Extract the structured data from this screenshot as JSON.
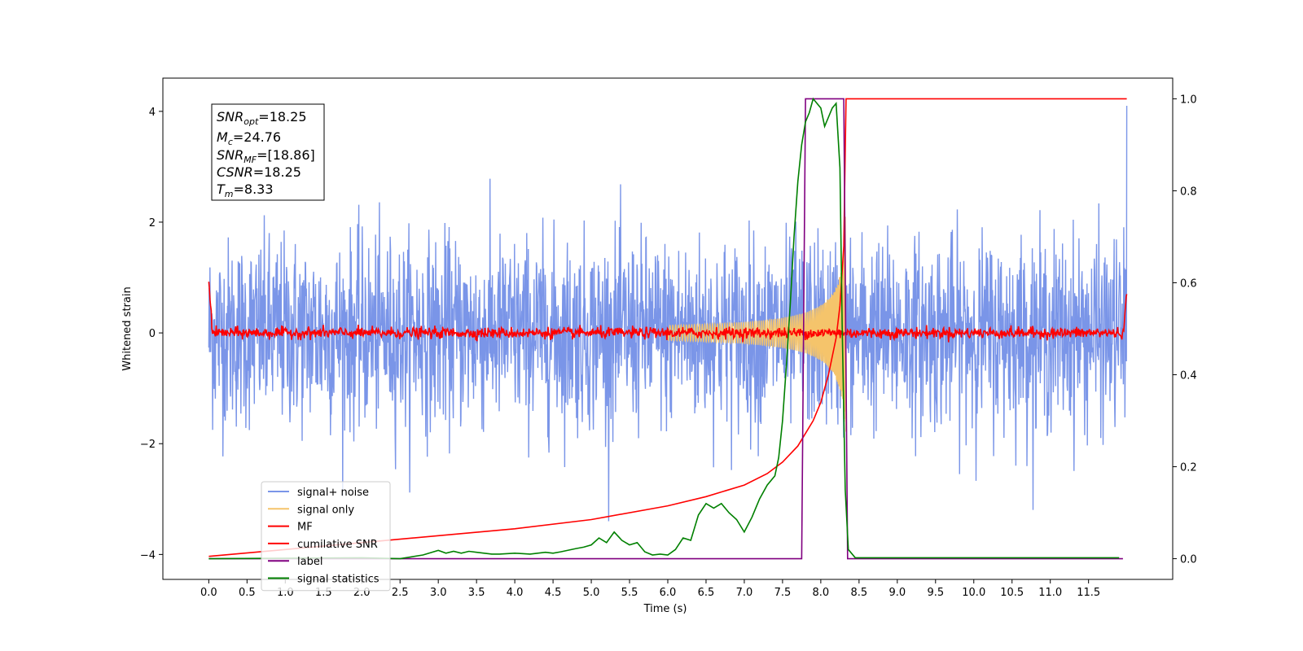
{
  "chart_data": {
    "type": "line",
    "xlabel": "Time (s)",
    "ylabel_left": "Whitened strain",
    "xlim": [
      -0.6,
      12.6
    ],
    "ylim_left": [
      -4.45,
      4.6
    ],
    "ylim_right": [
      -0.045,
      1.045
    ],
    "x_ticks": [
      "0.0",
      "0.5",
      "1.0",
      "1.5",
      "2.0",
      "2.5",
      "3.0",
      "3.5",
      "4.0",
      "4.5",
      "5.0",
      "5.5",
      "6.0",
      "6.5",
      "7.0",
      "7.5",
      "8.0",
      "8.5",
      "9.0",
      "9.5",
      "10.0",
      "10.5",
      "11.0",
      "11.5"
    ],
    "y_left_ticks": [
      "−4",
      "−2",
      "0",
      "2",
      "4"
    ],
    "y_right_ticks": [
      "0.0",
      "0.2",
      "0.4",
      "0.6",
      "0.8",
      "1.0"
    ],
    "annotation": {
      "snr_opt": {
        "base": "SNR",
        "sub": "opt",
        "value": "=18.25"
      },
      "mc": {
        "base": "M",
        "sub": "c",
        "value": "=24.76"
      },
      "snr_mf": {
        "base": "SNR",
        "sub": "MF",
        "value": "=[18.86]"
      },
      "csnr": {
        "base": "CSNR",
        "sub": "",
        "value": "=18.25"
      },
      "tm": {
        "base": "T",
        "sub": "m",
        "value": "=8.33"
      }
    },
    "legend_position": "lower-left",
    "series": [
      {
        "name": "signal+ noise",
        "color": "#7a95e8",
        "axis": "left",
        "description_values": "noise std ~0.85, range about -3.4 to 4.1, 0 to 12 s"
      },
      {
        "name": "signal only",
        "color": "#f5c46b",
        "axis": "left",
        "chirp_peak_time": 8.33,
        "peak_amplitude": 2.0
      },
      {
        "name": "MF",
        "color": "#ff0000",
        "axis": "left",
        "start_value": 1.0,
        "end_value": 0.92,
        "noise_std": 0.05
      },
      {
        "name": "cumilative SNR",
        "color": "#ff0000",
        "axis": "right",
        "x": [
          0.0,
          1.0,
          2.0,
          3.0,
          4.0,
          5.0,
          6.0,
          6.5,
          7.0,
          7.3,
          7.5,
          7.7,
          7.9,
          8.0,
          8.1,
          8.2,
          8.25,
          8.3,
          8.33,
          12.0
        ],
        "y": [
          0.005,
          0.02,
          0.035,
          0.05,
          0.065,
          0.085,
          0.115,
          0.135,
          0.16,
          0.185,
          0.21,
          0.245,
          0.3,
          0.34,
          0.4,
          0.48,
          0.55,
          0.68,
          1.0,
          1.0
        ]
      },
      {
        "name": "label",
        "color": "#800080",
        "axis": "right",
        "x": [
          0.0,
          7.75,
          7.8,
          8.3,
          8.35,
          11.95
        ],
        "y": [
          0.0,
          0.0,
          1.0,
          1.0,
          0.0,
          0.0
        ]
      },
      {
        "name": "signal statistics",
        "color": "#008000",
        "axis": "right",
        "x": [
          0.0,
          2.0,
          2.5,
          2.8,
          3.0,
          3.1,
          3.2,
          3.3,
          3.4,
          3.5,
          3.6,
          3.7,
          3.8,
          4.0,
          4.2,
          4.4,
          4.5,
          4.6,
          4.8,
          4.9,
          5.0,
          5.1,
          5.2,
          5.3,
          5.4,
          5.5,
          5.6,
          5.7,
          5.8,
          5.9,
          6.0,
          6.1,
          6.2,
          6.3,
          6.4,
          6.5,
          6.6,
          6.7,
          6.8,
          6.9,
          7.0,
          7.1,
          7.2,
          7.3,
          7.4,
          7.45,
          7.5,
          7.55,
          7.6,
          7.65,
          7.7,
          7.75,
          7.8,
          7.85,
          7.9,
          8.0,
          8.05,
          8.1,
          8.15,
          8.2,
          8.25,
          8.28,
          8.32,
          8.36,
          8.45,
          9.0,
          10.0,
          11.0,
          11.9
        ],
        "y": [
          0.0,
          0.002,
          0.0,
          0.008,
          0.018,
          0.012,
          0.016,
          0.012,
          0.016,
          0.014,
          0.012,
          0.01,
          0.01,
          0.012,
          0.01,
          0.014,
          0.012,
          0.015,
          0.022,
          0.025,
          0.03,
          0.045,
          0.035,
          0.058,
          0.04,
          0.03,
          0.035,
          0.015,
          0.008,
          0.01,
          0.008,
          0.02,
          0.045,
          0.04,
          0.095,
          0.12,
          0.11,
          0.12,
          0.1,
          0.085,
          0.058,
          0.09,
          0.13,
          0.16,
          0.18,
          0.22,
          0.3,
          0.42,
          0.55,
          0.7,
          0.82,
          0.9,
          0.95,
          0.97,
          1.0,
          0.98,
          0.94,
          0.96,
          0.98,
          0.99,
          0.85,
          0.5,
          0.15,
          0.02,
          0.002,
          0.002,
          0.002,
          0.002,
          0.002
        ]
      }
    ]
  }
}
